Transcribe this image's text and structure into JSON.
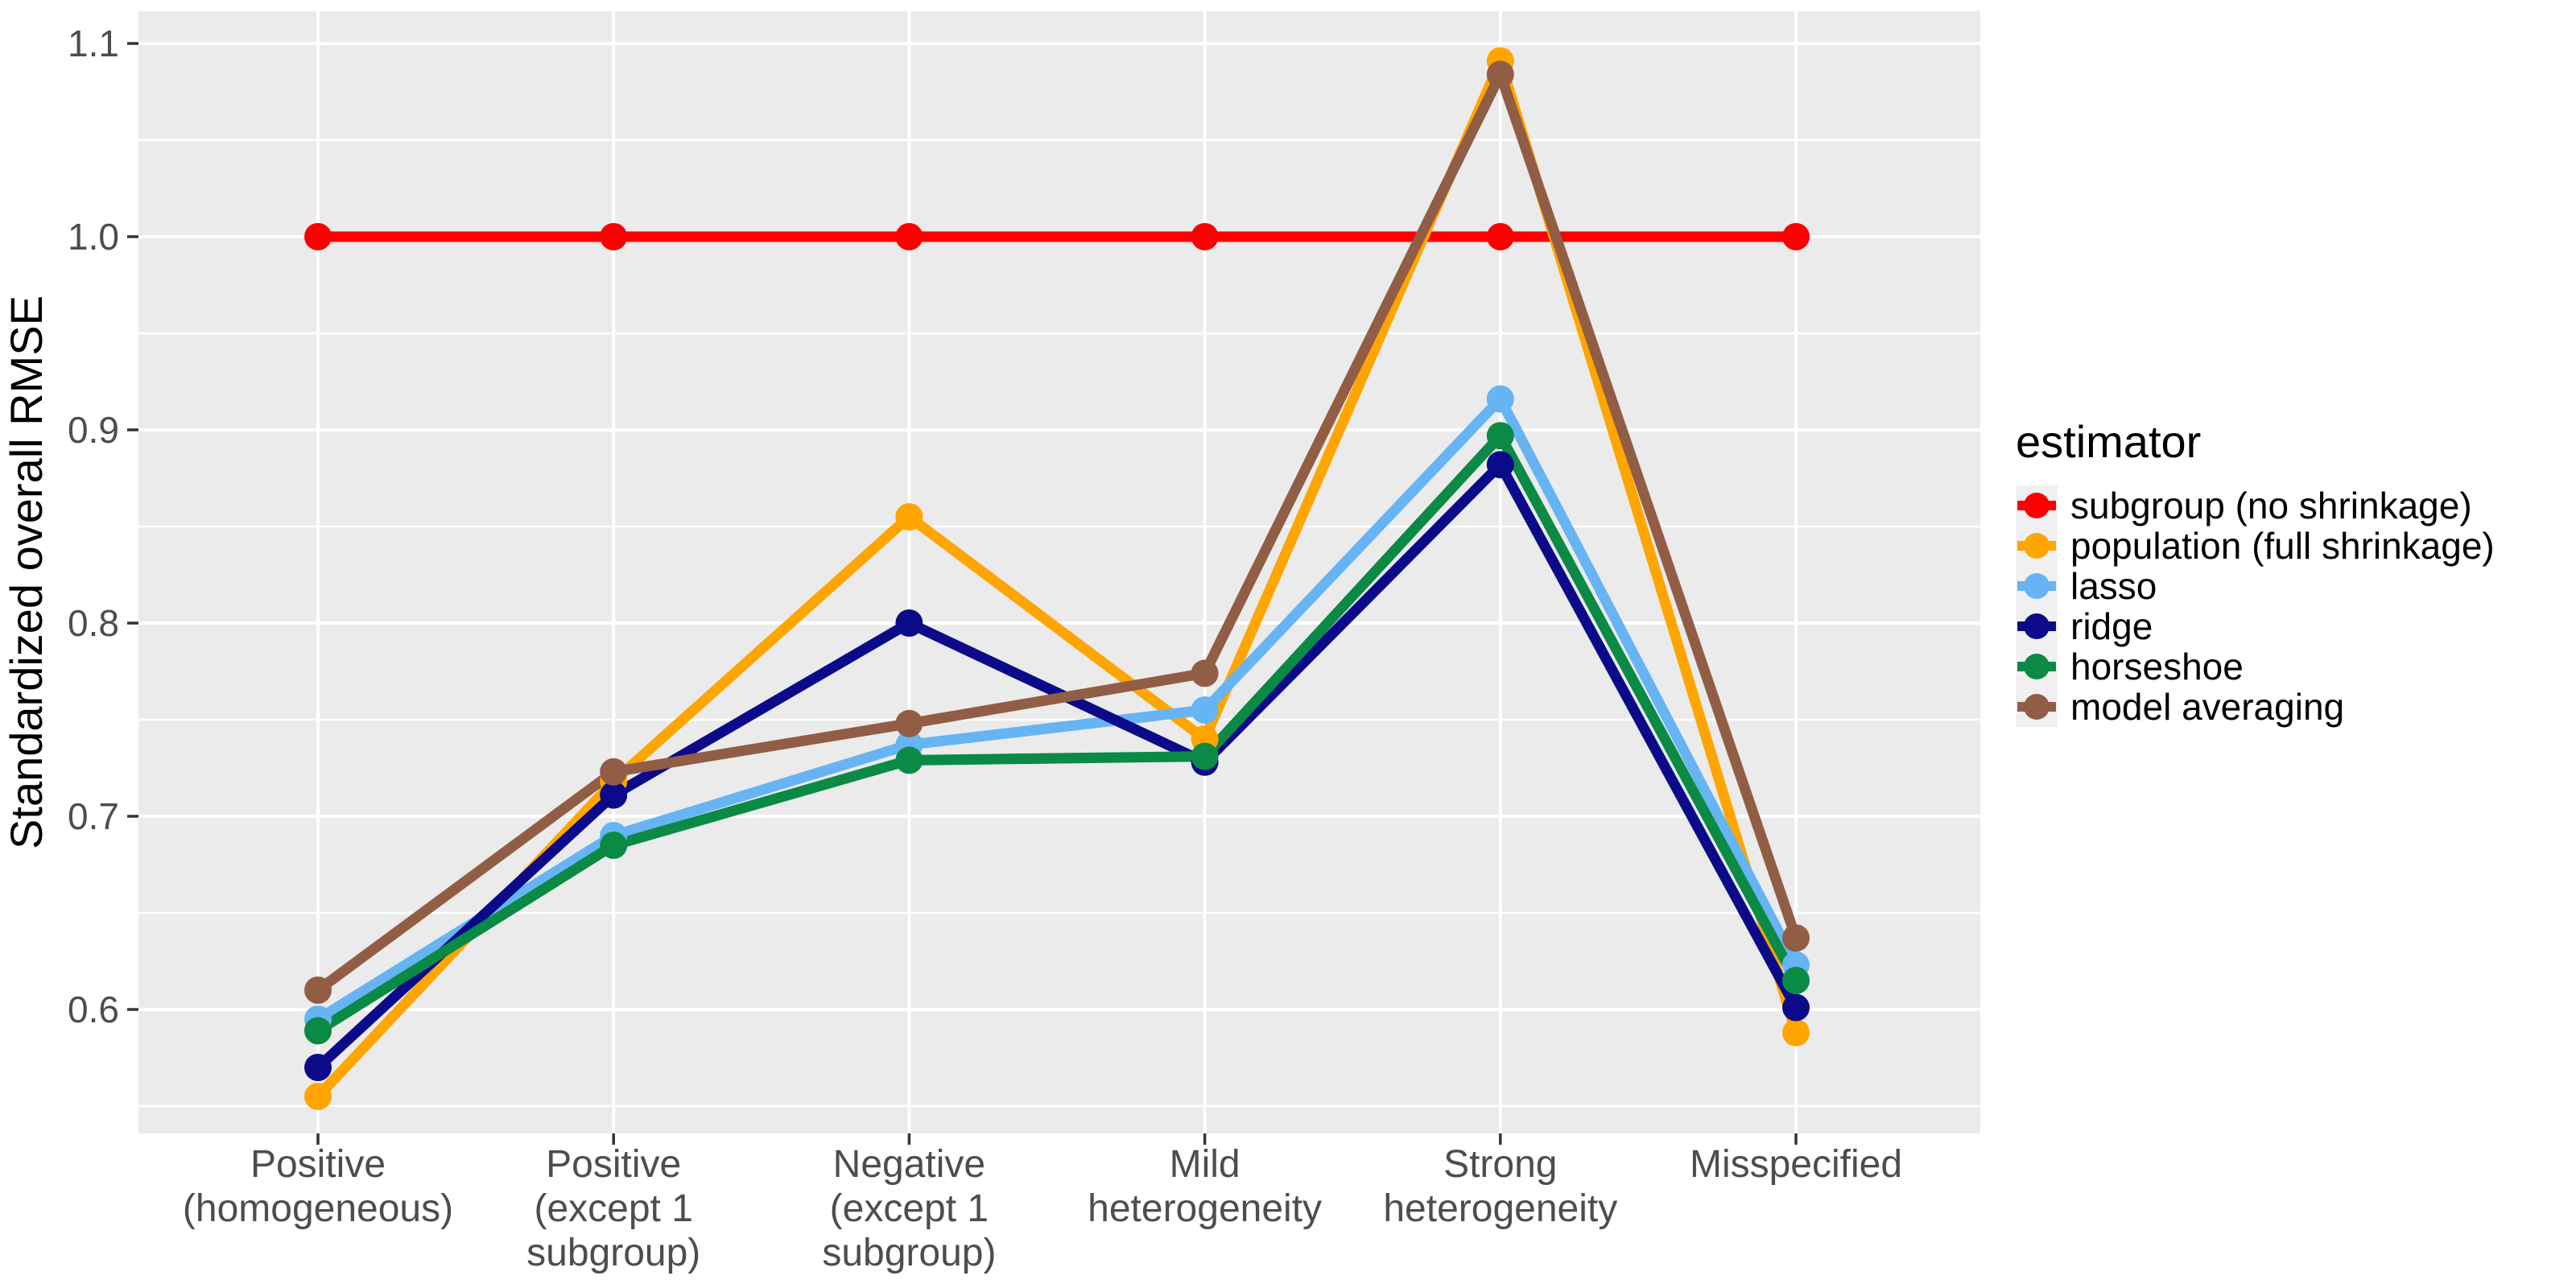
{
  "chart_data": {
    "type": "line",
    "title": "",
    "xlabel": "",
    "ylabel": "Standardized overall RMSE",
    "legend_title": "estimator",
    "legend_position": "right",
    "grid": true,
    "panel_background": "#EBEBEB",
    "gridline_color": "#FFFFFF",
    "categories": [
      "Positive (homogeneous)",
      "Positive (except 1 subgroup)",
      "Negative (except 1 subgroup)",
      "Mild heterogeneity",
      "Strong heterogeneity",
      "Misspecified"
    ],
    "category_label_lines": [
      [
        "Positive",
        "(homogeneous)"
      ],
      [
        "Positive",
        "(except 1",
        "subgroup)"
      ],
      [
        "Negative",
        "(except 1",
        "subgroup)"
      ],
      [
        "Mild",
        "heterogeneity"
      ],
      [
        "Strong",
        "heterogeneity"
      ],
      [
        "Misspecified"
      ]
    ],
    "y_ticks": [
      0.6,
      0.7,
      0.8,
      0.9,
      1.0,
      1.1
    ],
    "y_tick_labels": [
      "0.6",
      "0.7",
      "0.8",
      "0.9",
      "1.0",
      "1.1"
    ],
    "y_minor_ticks": [
      0.55,
      0.65,
      0.75,
      0.85,
      0.95,
      1.05
    ],
    "ylim": [
      0.528,
      1.118
    ],
    "series": [
      {
        "name": "subgroup (no shrinkage)",
        "color": "#FA0000",
        "values": [
          1.0,
          1.0,
          1.0,
          1.0,
          1.0,
          1.0
        ]
      },
      {
        "name": "population (full shrinkage)",
        "color": "#FFA500",
        "values": [
          0.555,
          0.718,
          0.855,
          0.74,
          1.091,
          0.588
        ]
      },
      {
        "name": "lasso",
        "color": "#66B4F3",
        "values": [
          0.595,
          0.69,
          0.737,
          0.755,
          0.916,
          0.623
        ]
      },
      {
        "name": "ridge",
        "color": "#0B0B8A",
        "values": [
          0.57,
          0.711,
          0.8,
          0.728,
          0.882,
          0.601
        ]
      },
      {
        "name": "horseshoe",
        "color": "#0A8A45",
        "values": [
          0.589,
          0.685,
          0.729,
          0.731,
          0.897,
          0.615
        ]
      },
      {
        "name": "model averaging",
        "color": "#925D45",
        "values": [
          0.61,
          0.723,
          0.748,
          0.774,
          1.084,
          0.637
        ]
      }
    ]
  },
  "colors": {
    "tick_label_text": "#4D4D4D",
    "axis_title_text": "#000000",
    "tick_mark": "#333333",
    "legend_key_background": "#F0F0F0",
    "legend_text": "#000000"
  }
}
